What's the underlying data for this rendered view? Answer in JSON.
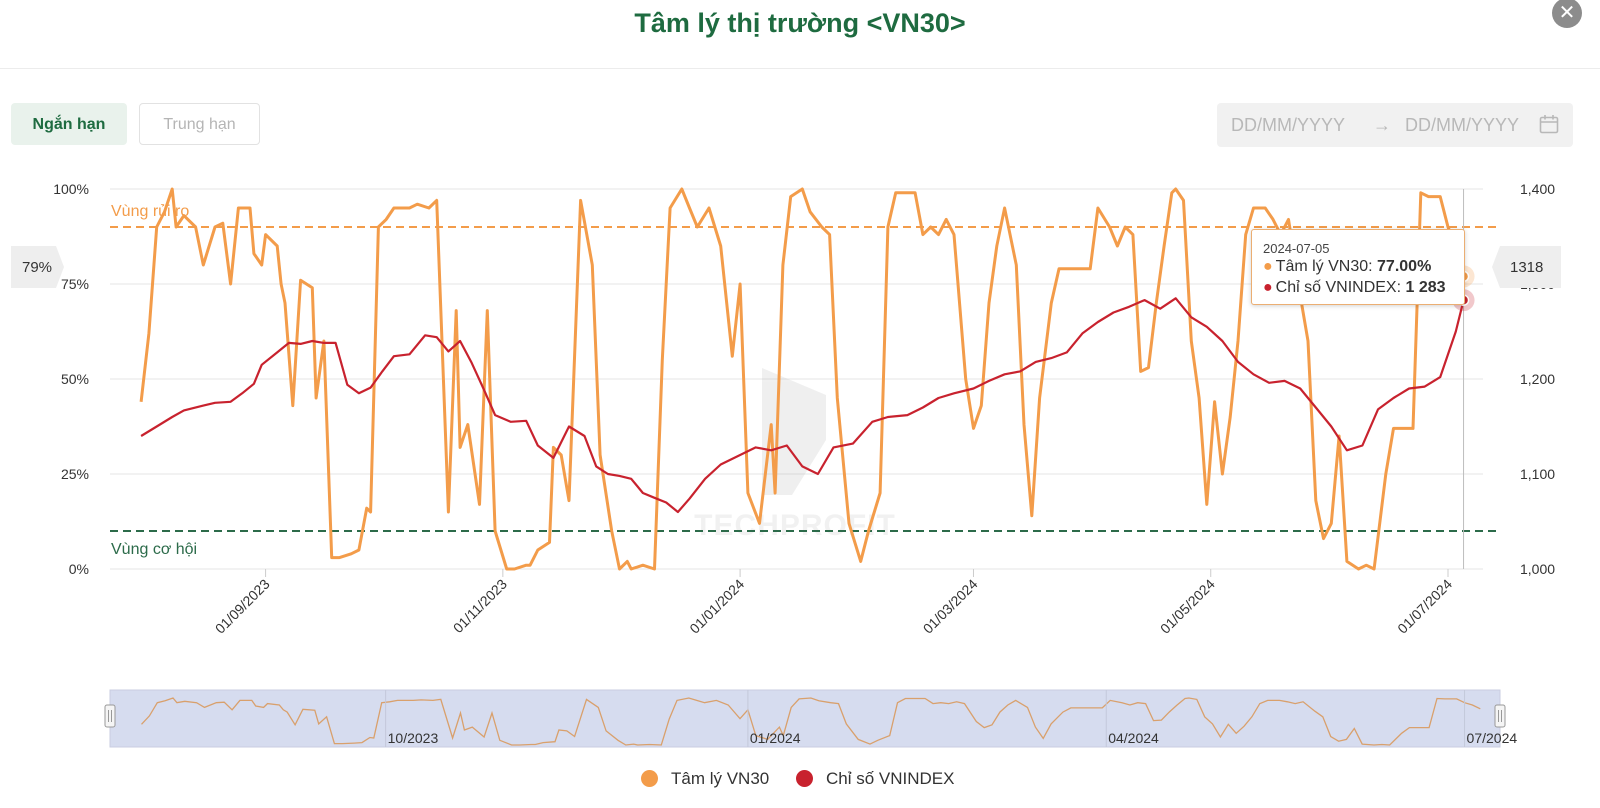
{
  "title": "Tâm lý thị trường <VN30>",
  "close_icon": "✕",
  "tabs": [
    {
      "label": "Ngắn hạn",
      "active": true
    },
    {
      "label": "Trung hạn",
      "active": false
    }
  ],
  "date_range": {
    "start_placeholder": "DD/MM/YYYY",
    "separator": "→",
    "end_placeholder": "DD/MM/YYYY",
    "icon": "calendar-icon"
  },
  "tooltip": {
    "date": "2024-07-05",
    "row1_label": "Tâm lý VN30: ",
    "row1_value": "77.00%",
    "row2_label": "Chỉ số VNINDEX: ",
    "row2_value": "1 283"
  },
  "flags": {
    "left": "79%",
    "right": "1318"
  },
  "watermark": "TECHPROFIT",
  "navigator_labels": [
    "10/2023",
    "01/2024",
    "04/2024",
    "07/2024"
  ],
  "colors": {
    "sentiment": "#f39c4a",
    "vnindex": "#c8222e",
    "risk_zone": "#f39c4a",
    "opportunity_zone": "#2c6b4a",
    "title": "#1e6b40"
  },
  "legend": [
    {
      "label": "Tâm lý VN30",
      "color": "#f39c4a"
    },
    {
      "label": "Chỉ số VNINDEX",
      "color": "#c8222e"
    }
  ],
  "chart_data": {
    "type": "line",
    "x_ticks": [
      "01/09/2023",
      "01/11/2023",
      "01/01/2024",
      "01/03/2024",
      "01/05/2024",
      "01/07/2024"
    ],
    "y_left_ticks": [
      "0%",
      "25%",
      "50%",
      "75%",
      "100%"
    ],
    "y_left_range": [
      0,
      100
    ],
    "y_right_ticks": [
      "1,000",
      "1,100",
      "1,200",
      "1,300",
      "1,400"
    ],
    "y_right_range": [
      1000,
      1400
    ],
    "x_range": [
      "2023-07-23",
      "2024-07-10"
    ],
    "zones": [
      {
        "label": "Vùng rủi ro",
        "value": 90,
        "axis": "left"
      },
      {
        "label": "Vùng cơ hội",
        "value": 10,
        "axis": "left"
      }
    ],
    "series": [
      {
        "name": "Tâm lý VN30",
        "axis": "left",
        "points": [
          [
            "2023-07-31",
            44
          ],
          [
            "2023-08-02",
            62
          ],
          [
            "2023-08-04",
            90
          ],
          [
            "2023-08-06",
            94
          ],
          [
            "2023-08-08",
            100
          ],
          [
            "2023-08-09",
            90
          ],
          [
            "2023-08-11",
            93
          ],
          [
            "2023-08-14",
            90
          ],
          [
            "2023-08-16",
            80
          ],
          [
            "2023-08-19",
            90
          ],
          [
            "2023-08-21",
            91
          ],
          [
            "2023-08-23",
            75
          ],
          [
            "2023-08-25",
            95
          ],
          [
            "2023-08-28",
            95
          ],
          [
            "2023-08-29",
            83
          ],
          [
            "2023-08-31",
            80
          ],
          [
            "2023-09-01",
            88
          ],
          [
            "2023-09-04",
            85
          ],
          [
            "2023-09-05",
            75
          ],
          [
            "2023-09-06",
            70
          ],
          [
            "2023-09-08",
            43
          ],
          [
            "2023-09-10",
            76
          ],
          [
            "2023-09-13",
            74
          ],
          [
            "2023-09-14",
            45
          ],
          [
            "2023-09-16",
            60
          ],
          [
            "2023-09-18",
            3
          ],
          [
            "2023-09-20",
            3
          ],
          [
            "2023-09-23",
            4
          ],
          [
            "2023-09-25",
            5
          ],
          [
            "2023-09-27",
            16
          ],
          [
            "2023-09-28",
            15
          ],
          [
            "2023-09-30",
            90
          ],
          [
            "2023-10-02",
            92
          ],
          [
            "2023-10-04",
            95
          ],
          [
            "2023-10-08",
            95
          ],
          [
            "2023-10-10",
            96
          ],
          [
            "2023-10-13",
            95
          ],
          [
            "2023-10-15",
            97
          ],
          [
            "2023-10-18",
            15
          ],
          [
            "2023-10-20",
            68
          ],
          [
            "2023-10-21",
            32
          ],
          [
            "2023-10-23",
            38
          ],
          [
            "2023-10-26",
            17
          ],
          [
            "2023-10-28",
            68
          ],
          [
            "2023-10-30",
            10
          ],
          [
            "2023-11-02",
            0
          ],
          [
            "2023-11-04",
            0
          ],
          [
            "2023-11-07",
            1
          ],
          [
            "2023-11-08",
            1
          ],
          [
            "2023-11-10",
            5
          ],
          [
            "2023-11-13",
            7
          ],
          [
            "2023-11-14",
            32
          ],
          [
            "2023-11-16",
            30
          ],
          [
            "2023-11-18",
            18
          ],
          [
            "2023-11-21",
            97
          ],
          [
            "2023-11-24",
            80
          ],
          [
            "2023-11-26",
            30
          ],
          [
            "2023-11-29",
            10
          ],
          [
            "2023-12-01",
            0
          ],
          [
            "2023-12-03",
            2
          ],
          [
            "2023-12-04",
            0
          ],
          [
            "2023-12-07",
            1
          ],
          [
            "2023-12-10",
            0
          ],
          [
            "2023-12-12",
            55
          ],
          [
            "2023-12-14",
            95
          ],
          [
            "2023-12-17",
            100
          ],
          [
            "2023-12-19",
            95
          ],
          [
            "2023-12-21",
            90
          ],
          [
            "2023-12-24",
            95
          ],
          [
            "2023-12-27",
            85
          ],
          [
            "2023-12-30",
            56
          ],
          [
            "2024-01-01",
            75
          ],
          [
            "2024-01-03",
            20
          ],
          [
            "2024-01-06",
            12
          ],
          [
            "2024-01-09",
            38
          ],
          [
            "2024-01-10",
            20
          ],
          [
            "2024-01-12",
            80
          ],
          [
            "2024-01-14",
            98
          ],
          [
            "2024-01-17",
            100
          ],
          [
            "2024-01-19",
            94
          ],
          [
            "2024-01-22",
            90
          ],
          [
            "2024-01-24",
            88
          ],
          [
            "2024-01-26",
            45
          ],
          [
            "2024-01-29",
            12
          ],
          [
            "2024-02-01",
            2
          ],
          [
            "2024-02-03",
            10
          ],
          [
            "2024-02-06",
            20
          ],
          [
            "2024-02-08",
            90
          ],
          [
            "2024-02-10",
            99
          ],
          [
            "2024-02-13",
            99
          ],
          [
            "2024-02-15",
            99
          ],
          [
            "2024-02-17",
            88
          ],
          [
            "2024-02-19",
            90
          ],
          [
            "2024-02-21",
            88
          ],
          [
            "2024-02-23",
            92
          ],
          [
            "2024-02-25",
            88
          ],
          [
            "2024-02-28",
            50
          ],
          [
            "2024-03-01",
            37
          ],
          [
            "2024-03-03",
            43
          ],
          [
            "2024-03-05",
            70
          ],
          [
            "2024-03-07",
            85
          ],
          [
            "2024-03-09",
            95
          ],
          [
            "2024-03-12",
            80
          ],
          [
            "2024-03-14",
            38
          ],
          [
            "2024-03-16",
            14
          ],
          [
            "2024-03-18",
            45
          ],
          [
            "2024-03-21",
            70
          ],
          [
            "2024-03-23",
            79
          ],
          [
            "2024-03-26",
            79
          ],
          [
            "2024-03-28",
            79
          ],
          [
            "2024-03-31",
            79
          ],
          [
            "2024-04-02",
            95
          ],
          [
            "2024-04-05",
            90
          ],
          [
            "2024-04-07",
            85
          ],
          [
            "2024-04-09",
            90
          ],
          [
            "2024-04-11",
            88
          ],
          [
            "2024-04-13",
            52
          ],
          [
            "2024-04-15",
            53
          ],
          [
            "2024-04-17",
            70
          ],
          [
            "2024-04-19",
            85
          ],
          [
            "2024-04-21",
            99
          ],
          [
            "2024-04-22",
            100
          ],
          [
            "2024-04-24",
            97
          ],
          [
            "2024-04-26",
            60
          ],
          [
            "2024-04-28",
            45
          ],
          [
            "2024-04-30",
            17
          ],
          [
            "2024-05-02",
            44
          ],
          [
            "2024-05-04",
            25
          ],
          [
            "2024-05-06",
            40
          ],
          [
            "2024-05-08",
            60
          ],
          [
            "2024-05-10",
            88
          ],
          [
            "2024-05-12",
            95
          ],
          [
            "2024-05-15",
            95
          ],
          [
            "2024-05-17",
            92
          ],
          [
            "2024-05-19",
            88
          ],
          [
            "2024-05-21",
            92
          ],
          [
            "2024-05-24",
            72
          ],
          [
            "2024-05-26",
            60
          ],
          [
            "2024-05-28",
            18
          ],
          [
            "2024-05-30",
            8
          ],
          [
            "2024-06-01",
            12
          ],
          [
            "2024-06-03",
            35
          ],
          [
            "2024-06-05",
            2
          ],
          [
            "2024-06-08",
            0
          ],
          [
            "2024-06-10",
            1
          ],
          [
            "2024-06-12",
            0
          ],
          [
            "2024-06-15",
            25
          ],
          [
            "2024-06-17",
            37
          ],
          [
            "2024-06-19",
            37
          ],
          [
            "2024-06-22",
            37
          ],
          [
            "2024-06-24",
            99
          ],
          [
            "2024-06-26",
            98
          ],
          [
            "2024-06-29",
            98
          ],
          [
            "2024-07-01",
            90
          ],
          [
            "2024-07-03",
            85
          ],
          [
            "2024-07-05",
            77
          ]
        ]
      },
      {
        "name": "Chỉ số VNINDEX",
        "axis": "right",
        "points": [
          [
            "2023-07-31",
            1140
          ],
          [
            "2023-08-04",
            1150
          ],
          [
            "2023-08-08",
            1160
          ],
          [
            "2023-08-11",
            1167
          ],
          [
            "2023-08-16",
            1172
          ],
          [
            "2023-08-19",
            1175
          ],
          [
            "2023-08-23",
            1176
          ],
          [
            "2023-08-26",
            1185
          ],
          [
            "2023-08-29",
            1195
          ],
          [
            "2023-08-31",
            1215
          ],
          [
            "2023-09-04",
            1228
          ],
          [
            "2023-09-07",
            1238
          ],
          [
            "2023-09-10",
            1237
          ],
          [
            "2023-09-13",
            1240
          ],
          [
            "2023-09-16",
            1238
          ],
          [
            "2023-09-19",
            1238
          ],
          [
            "2023-09-22",
            1194
          ],
          [
            "2023-09-25",
            1185
          ],
          [
            "2023-09-28",
            1191
          ],
          [
            "2023-10-01",
            1208
          ],
          [
            "2023-10-04",
            1224
          ],
          [
            "2023-10-08",
            1226
          ],
          [
            "2023-10-12",
            1246
          ],
          [
            "2023-10-15",
            1244
          ],
          [
            "2023-10-18",
            1229
          ],
          [
            "2023-10-21",
            1240
          ],
          [
            "2023-10-24",
            1217
          ],
          [
            "2023-10-27",
            1190
          ],
          [
            "2023-10-30",
            1162
          ],
          [
            "2023-11-03",
            1155
          ],
          [
            "2023-11-07",
            1156
          ],
          [
            "2023-11-10",
            1130
          ],
          [
            "2023-11-14",
            1117
          ],
          [
            "2023-11-18",
            1150
          ],
          [
            "2023-11-22",
            1140
          ],
          [
            "2023-11-25",
            1108
          ],
          [
            "2023-11-28",
            1100
          ],
          [
            "2023-12-01",
            1098
          ],
          [
            "2023-12-04",
            1095
          ],
          [
            "2023-12-07",
            1080
          ],
          [
            "2023-12-10",
            1075
          ],
          [
            "2023-12-13",
            1070
          ],
          [
            "2023-12-16",
            1060
          ],
          [
            "2023-12-19",
            1074
          ],
          [
            "2023-12-23",
            1095
          ],
          [
            "2023-12-27",
            1110
          ],
          [
            "2024-01-01",
            1120
          ],
          [
            "2024-01-05",
            1128
          ],
          [
            "2024-01-09",
            1125
          ],
          [
            "2024-01-13",
            1130
          ],
          [
            "2024-01-17",
            1108
          ],
          [
            "2024-01-21",
            1100
          ],
          [
            "2024-01-25",
            1128
          ],
          [
            "2024-01-30",
            1132
          ],
          [
            "2024-02-04",
            1155
          ],
          [
            "2024-02-08",
            1160
          ],
          [
            "2024-02-13",
            1162
          ],
          [
            "2024-02-17",
            1170
          ],
          [
            "2024-02-21",
            1180
          ],
          [
            "2024-02-25",
            1185
          ],
          [
            "2024-03-01",
            1190
          ],
          [
            "2024-03-05",
            1198
          ],
          [
            "2024-03-09",
            1205
          ],
          [
            "2024-03-13",
            1208
          ],
          [
            "2024-03-17",
            1218
          ],
          [
            "2024-03-21",
            1222
          ],
          [
            "2024-03-25",
            1228
          ],
          [
            "2024-03-29",
            1248
          ],
          [
            "2024-04-02",
            1260
          ],
          [
            "2024-04-06",
            1270
          ],
          [
            "2024-04-10",
            1276
          ],
          [
            "2024-04-14",
            1283
          ],
          [
            "2024-04-18",
            1274
          ],
          [
            "2024-04-22",
            1285
          ],
          [
            "2024-04-26",
            1265
          ],
          [
            "2024-04-30",
            1255
          ],
          [
            "2024-05-04",
            1240
          ],
          [
            "2024-05-08",
            1218
          ],
          [
            "2024-05-12",
            1205
          ],
          [
            "2024-05-16",
            1196
          ],
          [
            "2024-05-20",
            1198
          ],
          [
            "2024-05-24",
            1190
          ],
          [
            "2024-05-28",
            1170
          ],
          [
            "2024-06-01",
            1150
          ],
          [
            "2024-06-05",
            1125
          ],
          [
            "2024-06-09",
            1130
          ],
          [
            "2024-06-13",
            1168
          ],
          [
            "2024-06-17",
            1180
          ],
          [
            "2024-06-21",
            1190
          ],
          [
            "2024-06-25",
            1192
          ],
          [
            "2024-06-29",
            1202
          ],
          [
            "2024-07-03",
            1250
          ],
          [
            "2024-07-05",
            1283
          ]
        ]
      }
    ]
  }
}
